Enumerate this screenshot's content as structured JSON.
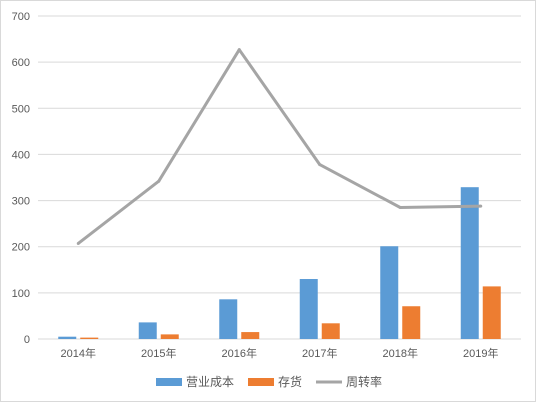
{
  "chart_data": {
    "type": "bar",
    "title": "",
    "xlabel": "",
    "ylabel": "",
    "categories": [
      "2014年",
      "2015年",
      "2016年",
      "2017年",
      "2018年",
      "2019年"
    ],
    "ylim": [
      0,
      700
    ],
    "yticks": [
      0,
      100,
      200,
      300,
      400,
      500,
      600,
      700
    ],
    "grid": true,
    "legend_position": "bottom",
    "series": [
      {
        "name": "营业成本",
        "type": "bar",
        "color": "#5b9bd5",
        "values": [
          5,
          36,
          86,
          130,
          201,
          329
        ]
      },
      {
        "name": "存货",
        "type": "bar",
        "color": "#ed7d31",
        "values": [
          3,
          10,
          15,
          34,
          71,
          114
        ]
      },
      {
        "name": "周转率",
        "type": "line",
        "color": "#a5a5a5",
        "values": [
          207,
          342,
          627,
          378,
          285,
          288
        ]
      }
    ]
  }
}
